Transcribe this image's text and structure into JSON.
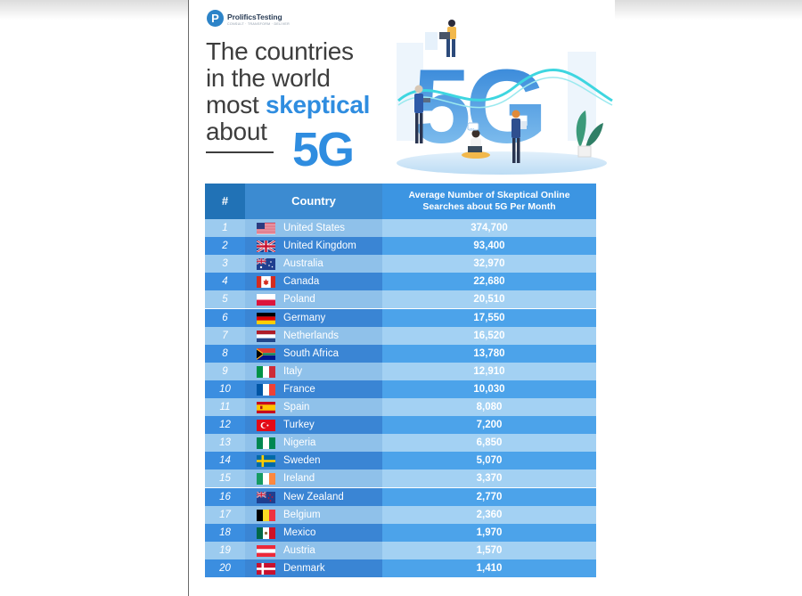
{
  "brand": {
    "name": "ProlificsTesting",
    "tagline": "CONSULT · TRANSFORM · DELIVER",
    "logo_letter": "P",
    "color": "#2d84c8"
  },
  "headline": {
    "line1": "The countries",
    "line2": "in the world",
    "line3_prefix": "most ",
    "line3_highlight": "skeptical",
    "line4": "about",
    "big": "5G",
    "accent_color": "#2f8de0"
  },
  "illustration": {
    "text": "5G",
    "bubble_text": "..."
  },
  "chart_data": {
    "type": "table",
    "columns": [
      "#",
      "Country",
      "Average Number of Skeptical Online Searches about 5G Per Month"
    ],
    "rows": [
      {
        "rank": "1",
        "country": "United States",
        "flag": "us-flag",
        "value": "374,700"
      },
      {
        "rank": "2",
        "country": "United Kingdom",
        "flag": "uk-flag",
        "value": "93,400"
      },
      {
        "rank": "3",
        "country": "Australia",
        "flag": "au-flag",
        "value": "32,970"
      },
      {
        "rank": "4",
        "country": "Canada",
        "flag": "ca-flag",
        "value": "22,680"
      },
      {
        "rank": "5",
        "country": "Poland",
        "flag": "pl-flag",
        "value": "20,510"
      },
      {
        "rank": "6",
        "country": "Germany",
        "flag": "de-flag",
        "value": "17,550"
      },
      {
        "rank": "7",
        "country": "Netherlands",
        "flag": "nl-flag",
        "value": "16,520"
      },
      {
        "rank": "8",
        "country": "South Africa",
        "flag": "za-flag",
        "value": "13,780"
      },
      {
        "rank": "9",
        "country": "Italy",
        "flag": "it-flag",
        "value": "12,910"
      },
      {
        "rank": "10",
        "country": "France",
        "flag": "fr-flag",
        "value": "10,030"
      },
      {
        "rank": "11",
        "country": "Spain",
        "flag": "es-flag",
        "value": "8,080"
      },
      {
        "rank": "12",
        "country": "Turkey",
        "flag": "tr-flag",
        "value": "7,200"
      },
      {
        "rank": "13",
        "country": "Nigeria",
        "flag": "ng-flag",
        "value": "6,850"
      },
      {
        "rank": "14",
        "country": "Sweden",
        "flag": "se-flag",
        "value": "5,070"
      },
      {
        "rank": "15",
        "country": "Ireland",
        "flag": "ie-flag",
        "value": "3,370"
      },
      {
        "rank": "16",
        "country": "New Zealand",
        "flag": "nz-flag",
        "value": "2,770"
      },
      {
        "rank": "17",
        "country": "Belgium",
        "flag": "be-flag",
        "value": "2,360"
      },
      {
        "rank": "18",
        "country": "Mexico",
        "flag": "mx-flag",
        "value": "1,970"
      },
      {
        "rank": "19",
        "country": "Austria",
        "flag": "at-flag",
        "value": "1,570"
      },
      {
        "rank": "20",
        "country": "Denmark",
        "flag": "dk-flag",
        "value": "1,410"
      }
    ],
    "colors": {
      "header_dark": "#2172b6",
      "header_mid": "#3c8bd1",
      "row_light": "#9ccbef",
      "row_dark": "#3b8ee0"
    }
  }
}
